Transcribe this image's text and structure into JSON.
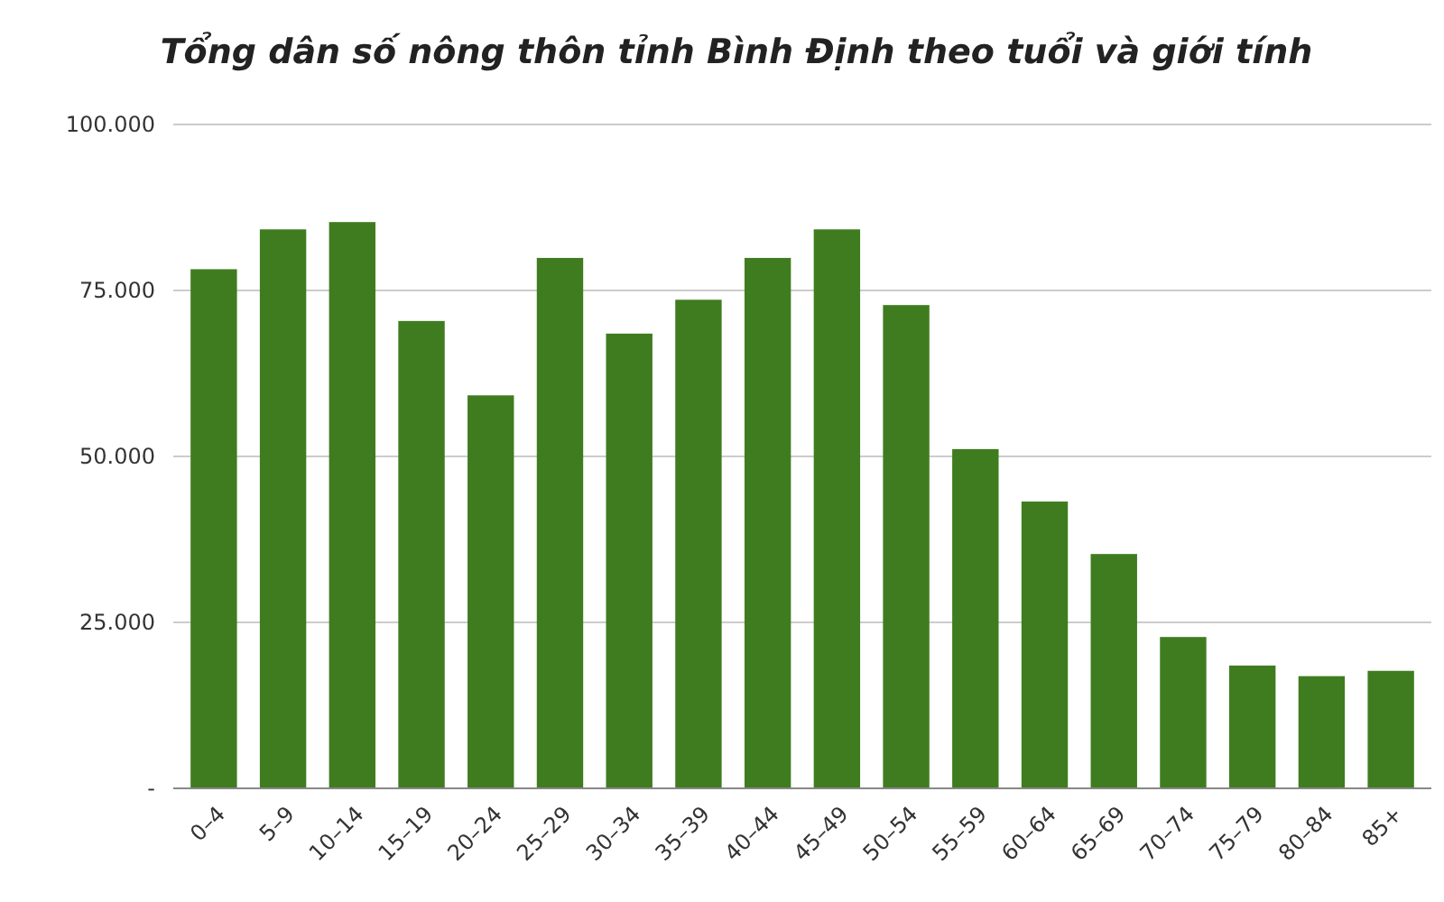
{
  "chart_data": {
    "type": "bar",
    "title": "Tổng dân số nông thôn tỉnh Bình Định theo tuổi và giới tính",
    "categories": [
      "0–4",
      "5–9",
      "10–14",
      "15–19",
      "20–24",
      "25–29",
      "30–34",
      "35–39",
      "40–44",
      "45–49",
      "50–54",
      "55–59",
      "60–64",
      "65–69",
      "70–74",
      "75–79",
      "80–84",
      "85+"
    ],
    "values": [
      78200,
      84200,
      85300,
      70400,
      59200,
      79900,
      68500,
      73600,
      79900,
      84200,
      72800,
      51100,
      43200,
      35300,
      22800,
      18500,
      16900,
      17700
    ],
    "color": "#3f7c1f",
    "ylim": [
      0,
      100000
    ],
    "yticks": [
      {
        "value": 0,
        "label": "-"
      },
      {
        "value": 25000,
        "label": "25.000"
      },
      {
        "value": 50000,
        "label": "50.000"
      },
      {
        "value": 75000,
        "label": "75.000"
      },
      {
        "value": 100000,
        "label": "100.000"
      }
    ],
    "grid": "y"
  }
}
